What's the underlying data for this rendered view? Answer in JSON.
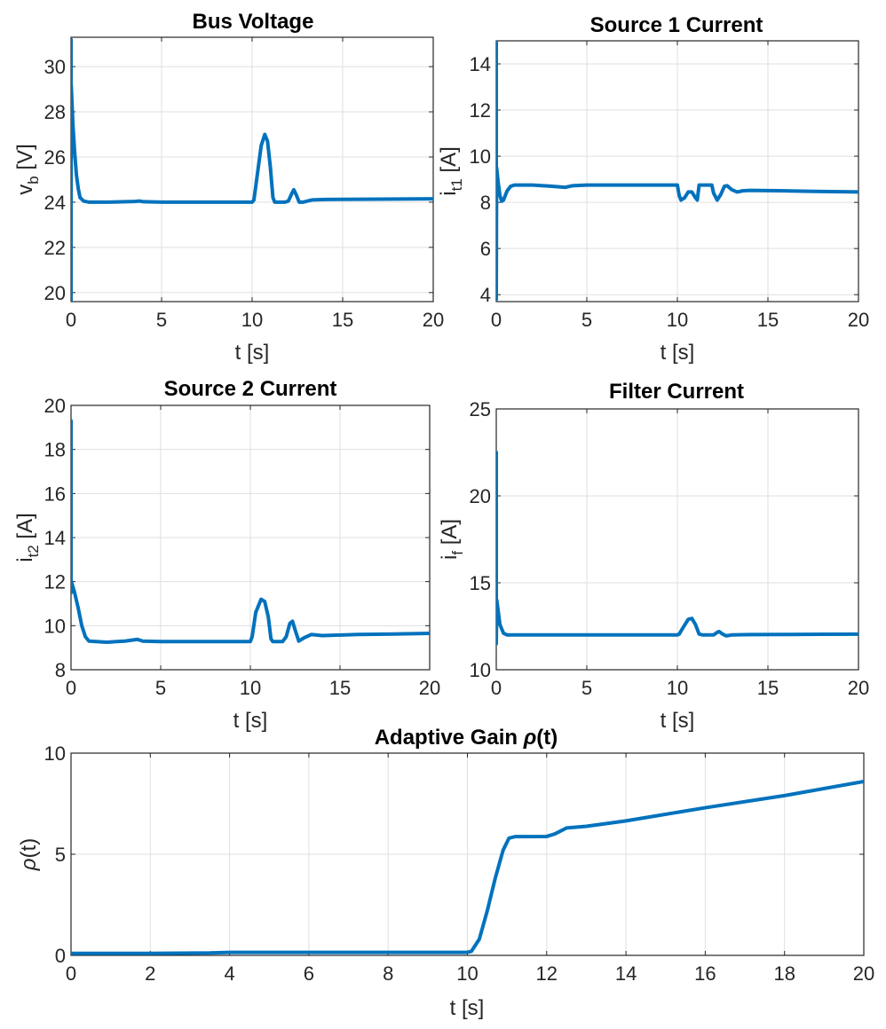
{
  "figure": {
    "line_color": "#0072bd",
    "grid_color": "#dfdfdf",
    "axis_color": "#262626"
  },
  "chart_data": [
    {
      "id": "bus-voltage",
      "type": "line",
      "title": "Bus Voltage",
      "xlabel": "t [s]",
      "ylabel": "v_b [V]",
      "ylabel_main": "v",
      "ylabel_sub": "b",
      "ylabel_tail": " [V]",
      "xlim": [
        0,
        20
      ],
      "ylim": [
        19.6,
        31.3
      ],
      "xticks": [
        0,
        5,
        10,
        15,
        20
      ],
      "yticks": [
        20,
        22,
        24,
        26,
        28,
        30
      ],
      "series": [
        {
          "name": "v_b",
          "points": [
            [
              0,
              31.2
            ],
            [
              0,
              19.6
            ],
            [
              0.01,
              29.2
            ],
            [
              0.1,
              27.5
            ],
            [
              0.2,
              26.2
            ],
            [
              0.3,
              25.2
            ],
            [
              0.4,
              24.6
            ],
            [
              0.5,
              24.2
            ],
            [
              0.7,
              24.05
            ],
            [
              1,
              24.0
            ],
            [
              2,
              24.0
            ],
            [
              3.5,
              24.03
            ],
            [
              3.8,
              24.05
            ],
            [
              4,
              24.02
            ],
            [
              5,
              24.0
            ],
            [
              8,
              24.0
            ],
            [
              10,
              24.0
            ],
            [
              10.1,
              24.1
            ],
            [
              10.3,
              25.3
            ],
            [
              10.5,
              26.5
            ],
            [
              10.7,
              27.0
            ],
            [
              10.85,
              26.7
            ],
            [
              11.0,
              25.6
            ],
            [
              11.15,
              24.2
            ],
            [
              11.25,
              24.0
            ],
            [
              11.8,
              24.0
            ],
            [
              12.0,
              24.05
            ],
            [
              12.2,
              24.4
            ],
            [
              12.3,
              24.55
            ],
            [
              12.45,
              24.3
            ],
            [
              12.6,
              24.0
            ],
            [
              12.8,
              24.0
            ],
            [
              13.3,
              24.1
            ],
            [
              14,
              24.12
            ],
            [
              16,
              24.13
            ],
            [
              18,
              24.14
            ],
            [
              20,
              24.15
            ]
          ]
        }
      ]
    },
    {
      "id": "source1-current",
      "type": "line",
      "title": "Source 1 Current",
      "xlabel": "t [s]",
      "ylabel": "i_t1 [A]",
      "ylabel_main": "i",
      "ylabel_sub": "t1",
      "ylabel_tail": " [A]",
      "xlim": [
        0,
        20
      ],
      "ylim": [
        3.7,
        15
      ],
      "xticks": [
        0,
        5,
        10,
        15,
        20
      ],
      "yticks": [
        4,
        6,
        8,
        10,
        12,
        14
      ],
      "series": [
        {
          "name": "i_t1",
          "points": [
            [
              0,
              15
            ],
            [
              0,
              3.8
            ],
            [
              0.02,
              9.5
            ],
            [
              0.1,
              8.9
            ],
            [
              0.2,
              8.3
            ],
            [
              0.3,
              8.05
            ],
            [
              0.4,
              8.1
            ],
            [
              0.6,
              8.5
            ],
            [
              0.8,
              8.7
            ],
            [
              1,
              8.75
            ],
            [
              2,
              8.75
            ],
            [
              3,
              8.7
            ],
            [
              3.8,
              8.65
            ],
            [
              4.2,
              8.72
            ],
            [
              5,
              8.75
            ],
            [
              8,
              8.75
            ],
            [
              10,
              8.75
            ],
            [
              10.1,
              8.3
            ],
            [
              10.2,
              8.1
            ],
            [
              10.4,
              8.2
            ],
            [
              10.6,
              8.45
            ],
            [
              10.8,
              8.45
            ],
            [
              11.0,
              8.2
            ],
            [
              11.1,
              8.1
            ],
            [
              11.2,
              8.75
            ],
            [
              11.9,
              8.75
            ],
            [
              12.0,
              8.4
            ],
            [
              12.2,
              8.1
            ],
            [
              12.4,
              8.35
            ],
            [
              12.6,
              8.7
            ],
            [
              12.75,
              8.72
            ],
            [
              13.0,
              8.55
            ],
            [
              13.3,
              8.45
            ],
            [
              13.6,
              8.5
            ],
            [
              14,
              8.52
            ],
            [
              16,
              8.5
            ],
            [
              18,
              8.47
            ],
            [
              20,
              8.45
            ]
          ]
        }
      ]
    },
    {
      "id": "source2-current",
      "type": "line",
      "title": "Source 2 Current",
      "xlabel": "t [s]",
      "ylabel": "i_t2 [A]",
      "ylabel_main": "i",
      "ylabel_sub": "t2",
      "ylabel_tail": " [A]",
      "xlim": [
        0,
        20
      ],
      "ylim": [
        8,
        20
      ],
      "xticks": [
        0,
        5,
        10,
        15,
        20
      ],
      "yticks": [
        8,
        10,
        12,
        14,
        16,
        18,
        20
      ],
      "series": [
        {
          "name": "i_t2",
          "points": [
            [
              0,
              19.3
            ],
            [
              0,
              11.5
            ],
            [
              0.02,
              12.0
            ],
            [
              0.2,
              11.5
            ],
            [
              0.4,
              10.8
            ],
            [
              0.6,
              10.0
            ],
            [
              0.8,
              9.5
            ],
            [
              1,
              9.3
            ],
            [
              2,
              9.25
            ],
            [
              3,
              9.3
            ],
            [
              3.7,
              9.38
            ],
            [
              4.0,
              9.3
            ],
            [
              5,
              9.28
            ],
            [
              8,
              9.28
            ],
            [
              10,
              9.28
            ],
            [
              10.1,
              9.5
            ],
            [
              10.3,
              10.6
            ],
            [
              10.6,
              11.2
            ],
            [
              10.8,
              11.1
            ],
            [
              11.0,
              10.4
            ],
            [
              11.15,
              9.4
            ],
            [
              11.25,
              9.28
            ],
            [
              11.8,
              9.28
            ],
            [
              12.0,
              9.5
            ],
            [
              12.2,
              10.1
            ],
            [
              12.35,
              10.2
            ],
            [
              12.5,
              9.8
            ],
            [
              12.7,
              9.3
            ],
            [
              13.0,
              9.45
            ],
            [
              13.4,
              9.6
            ],
            [
              14,
              9.55
            ],
            [
              16,
              9.6
            ],
            [
              18,
              9.62
            ],
            [
              20,
              9.65
            ]
          ]
        }
      ]
    },
    {
      "id": "filter-current",
      "type": "line",
      "title": "Filter Current",
      "xlabel": "t [s]",
      "ylabel": "i_f [A]",
      "ylabel_main": "i",
      "ylabel_sub": "f",
      "ylabel_tail": " [A]",
      "xlim": [
        0,
        20
      ],
      "ylim": [
        10,
        25
      ],
      "xticks": [
        0,
        5,
        10,
        15,
        20
      ],
      "yticks": [
        10,
        15,
        20,
        25
      ],
      "series": [
        {
          "name": "i_f",
          "points": [
            [
              0,
              22.5
            ],
            [
              0,
              11.5
            ],
            [
              0.03,
              14.0
            ],
            [
              0.2,
              12.6
            ],
            [
              0.4,
              12.1
            ],
            [
              0.6,
              12.0
            ],
            [
              1,
              12.0
            ],
            [
              5,
              12.0
            ],
            [
              10,
              12.0
            ],
            [
              10.1,
              12.05
            ],
            [
              10.3,
              12.4
            ],
            [
              10.6,
              12.9
            ],
            [
              10.8,
              12.95
            ],
            [
              11.0,
              12.6
            ],
            [
              11.2,
              12.05
            ],
            [
              11.4,
              12.0
            ],
            [
              12.0,
              12.0
            ],
            [
              12.2,
              12.15
            ],
            [
              12.3,
              12.2
            ],
            [
              12.5,
              12.05
            ],
            [
              12.7,
              11.95
            ],
            [
              13,
              12.0
            ],
            [
              14,
              12.02
            ],
            [
              16,
              12.03
            ],
            [
              18,
              12.04
            ],
            [
              20,
              12.05
            ]
          ]
        }
      ]
    },
    {
      "id": "adaptive-gain",
      "type": "line",
      "title": "Adaptive Gain ρ(t)",
      "title_main": "Adaptive Gain ",
      "title_rho": "ρ",
      "title_tail": "(t)",
      "xlabel": "t [s]",
      "ylabel": "ρ(t)",
      "ylabel_rho": "ρ",
      "ylabel_tail": "(t)",
      "xlim": [
        0,
        20
      ],
      "ylim": [
        0,
        10
      ],
      "xticks": [
        0,
        2,
        4,
        6,
        8,
        10,
        12,
        14,
        16,
        18,
        20
      ],
      "yticks": [
        0,
        5,
        10
      ],
      "series": [
        {
          "name": "rho",
          "points": [
            [
              0,
              0.1
            ],
            [
              2,
              0.1
            ],
            [
              3.5,
              0.12
            ],
            [
              4,
              0.15
            ],
            [
              6,
              0.15
            ],
            [
              8,
              0.15
            ],
            [
              10,
              0.15
            ],
            [
              10.1,
              0.2
            ],
            [
              10.3,
              0.8
            ],
            [
              10.5,
              2.2
            ],
            [
              10.7,
              3.8
            ],
            [
              10.9,
              5.2
            ],
            [
              11.05,
              5.8
            ],
            [
              11.2,
              5.87
            ],
            [
              12.0,
              5.88
            ],
            [
              12.2,
              6.0
            ],
            [
              12.5,
              6.3
            ],
            [
              13.0,
              6.38
            ],
            [
              14,
              6.65
            ],
            [
              16,
              7.3
            ],
            [
              18,
              7.9
            ],
            [
              20,
              8.6
            ]
          ]
        }
      ]
    }
  ]
}
